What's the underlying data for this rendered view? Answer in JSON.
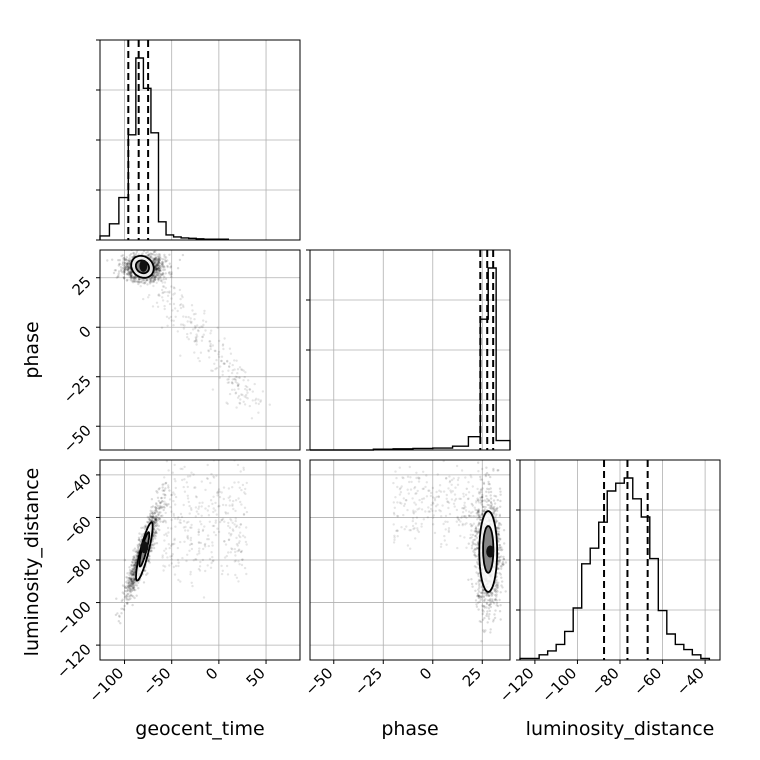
{
  "chart_data": {
    "type": "corner",
    "parameters": [
      "geocent_time",
      "phase",
      "luminosity_distance"
    ],
    "axes": {
      "geocent_time": {
        "label": "geocent_time",
        "range": [
          -126,
          86
        ],
        "ticks": [
          -100,
          -50,
          0,
          50
        ],
        "tick_labels": [
          "−100",
          "−50",
          "0",
          "50"
        ]
      },
      "phase": {
        "label": "phase",
        "range": [
          -62,
          39
        ],
        "ticks": [
          -50,
          -25,
          0,
          25
        ],
        "tick_labels": [
          "−50",
          "−25",
          "0",
          "25"
        ]
      },
      "luminosity_distance": {
        "label": "luminosity_distance",
        "range": [
          -127,
          -33
        ],
        "ticks": [
          -120,
          -100,
          -80,
          -60,
          -40
        ],
        "tick_labels": [
          "−120",
          "−100",
          "−80",
          "−60",
          "−40"
        ]
      }
    },
    "histograms": {
      "geocent_time": {
        "bins": [
          -126,
          -116,
          -106,
          -96,
          -88,
          -80,
          -72,
          -64,
          -56,
          -48,
          -40,
          -32,
          -24,
          -16,
          -8,
          10
        ],
        "heights": [
          0.02,
          0.08,
          0.21,
          0.52,
          0.9,
          0.75,
          0.53,
          0.09,
          0.025,
          0.015,
          0.01,
          0.008,
          0.006,
          0.004,
          0.004
        ],
        "quantiles": [
          -96,
          -85,
          -75
        ]
      },
      "phase": {
        "bins": [
          -30,
          -20,
          -10,
          0,
          10,
          18,
          24,
          28,
          32,
          39
        ],
        "heights": [
          0.004,
          0.006,
          0.008,
          0.01,
          0.02,
          0.07,
          0.69,
          0.96,
          0.05
        ],
        "quantiles": [
          24,
          27.5,
          30.5
        ]
      },
      "luminosity_distance": {
        "bins": [
          -127,
          -122,
          -118,
          -114,
          -110,
          -106,
          -102,
          -98,
          -94,
          -90,
          -86,
          -82,
          -78,
          -74,
          -70,
          -66,
          -62,
          -58,
          -54,
          -50,
          -46,
          -42,
          -38
        ],
        "heights": [
          0.006,
          0.006,
          0.02,
          0.035,
          0.06,
          0.11,
          0.2,
          0.37,
          0.43,
          0.53,
          0.65,
          0.68,
          0.7,
          0.62,
          0.55,
          0.39,
          0.19,
          0.1,
          0.06,
          0.04,
          0.02,
          0.006
        ],
        "quantiles": [
          -87.5,
          -76.5,
          -67
        ]
      }
    },
    "contours": {
      "phase_vs_geocent_time": {
        "mode": [
          -80,
          31
        ],
        "levels": [
          {
            "center": [
              -81,
              30.5
            ],
            "half_widths": [
              12,
              5.5
            ],
            "angle_deg": -5
          },
          {
            "center": [
              -81,
              30.5
            ],
            "half_widths": [
              7,
              3.2
            ],
            "angle_deg": -5
          }
        ]
      },
      "luminosity_distance_vs_geocent_time": {
        "mode": [
          -79,
          -74
        ],
        "levels": [
          {
            "center": [
              -79,
              -76
            ],
            "half_widths": [
              17,
              7
            ],
            "angle_deg": 60
          },
          {
            "center": [
              -79,
              -75
            ],
            "half_widths": [
              10,
              4
            ],
            "angle_deg": 60
          }
        ]
      },
      "luminosity_distance_vs_phase": {
        "mode": [
          29,
          -76
        ],
        "levels": [
          {
            "center": [
              28,
              -76
            ],
            "half_widths": [
              4.5,
              19
            ],
            "angle_deg": 0
          },
          {
            "center": [
              28,
              -75
            ],
            "half_widths": [
              2.6,
              11
            ],
            "angle_deg": 0
          }
        ]
      }
    },
    "grid": true,
    "legend": "none"
  }
}
